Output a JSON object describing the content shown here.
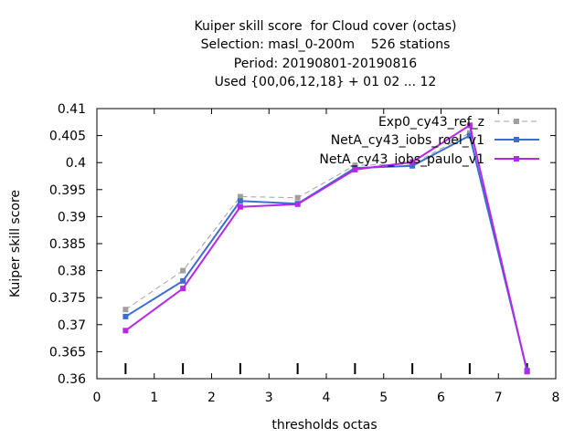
{
  "chart_data": {
    "type": "line",
    "title_lines": [
      "Kuiper skill score  for Cloud cover (octas)",
      "Selection: masl_0-200m    526 stations",
      "Period: 20190801-20190816",
      "Used {00,06,12,18} + 01 02 ... 12"
    ],
    "xlabel": "thresholds octas",
    "ylabel": "Kuiper skill score",
    "xlim": [
      0,
      8
    ],
    "ylim": [
      0.36,
      0.41
    ],
    "xticks": [
      "0",
      "1",
      "2",
      "3",
      "4",
      "5",
      "6",
      "7",
      "8"
    ],
    "yticks": [
      "0.36",
      "0.365",
      "0.37",
      "0.375",
      "0.38",
      "0.385",
      "0.39",
      "0.395",
      "0.4",
      "0.405",
      "0.41"
    ],
    "x": [
      0.5,
      1.5,
      2.5,
      3.5,
      4.5,
      5.5,
      6.5,
      7.5
    ],
    "grid": false,
    "legend_position": "top-right",
    "series": [
      {
        "name": "Exp0_cy43_ref_z",
        "color": "#a0a0a0",
        "dashed": true,
        "values": [
          0.3728,
          0.38,
          0.3937,
          0.3935,
          0.3995,
          0.3997,
          0.4055,
          0.3615
        ]
      },
      {
        "name": "NetA_cy43_iobs_roel_v1",
        "color": "#3c6ed2",
        "dashed": false,
        "values": [
          0.3715,
          0.3781,
          0.3929,
          0.3924,
          0.399,
          0.3994,
          0.405,
          0.3615
        ]
      },
      {
        "name": "NetA_cy43_iobs_paulo_v1",
        "color": "#b428e6",
        "dashed": false,
        "values": [
          0.3689,
          0.3767,
          0.3918,
          0.3923,
          0.3987,
          0.4001,
          0.4069,
          0.3613
        ]
      }
    ]
  }
}
